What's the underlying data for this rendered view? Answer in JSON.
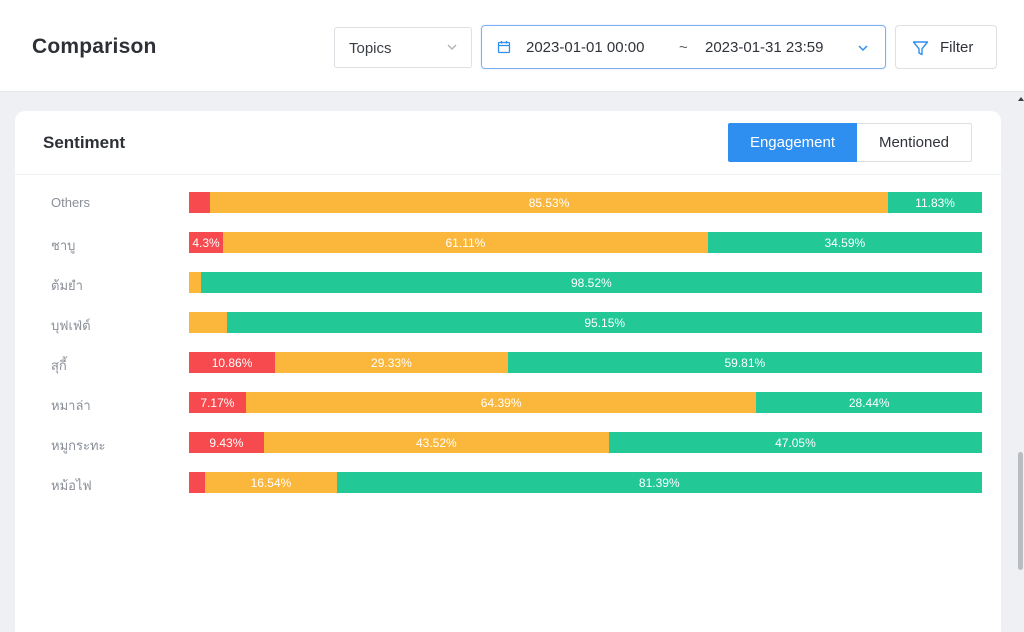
{
  "header": {
    "title": "Comparison",
    "topics_label": "Topics",
    "date_start": "2023-01-01 00:00",
    "date_sep": "~",
    "date_end": "2023-01-31 23:59",
    "filter_label": "Filter"
  },
  "card": {
    "title": "Sentiment",
    "toggle": {
      "active": "Engagement",
      "inactive": "Mentioned"
    }
  },
  "colors": {
    "negative": "#f64a4f",
    "neutral": "#fbb73c",
    "positive": "#22c896",
    "accent": "#2e8ff0"
  },
  "chart_data": {
    "type": "bar",
    "orientation": "horizontal",
    "stacked": "percent",
    "series_order": [
      "negative",
      "neutral",
      "positive"
    ],
    "rows": [
      {
        "label": "Others",
        "negative": 2.64,
        "neutral": 85.53,
        "positive": 11.83,
        "text": [
          "",
          "85.53%",
          "11.83%"
        ]
      },
      {
        "label": "ชาบู",
        "negative": 4.3,
        "neutral": 61.11,
        "positive": 34.59,
        "text": [
          "4.3%",
          "61.11%",
          "34.59%"
        ]
      },
      {
        "label": "ต้มยำ",
        "negative": 0,
        "neutral": 1.48,
        "positive": 98.52,
        "text": [
          "",
          "",
          "98.52%"
        ]
      },
      {
        "label": "บุฟเฟ่ต์",
        "negative": 0,
        "neutral": 4.85,
        "positive": 95.15,
        "text": [
          "",
          "",
          "95.15%"
        ]
      },
      {
        "label": "สุกี้",
        "negative": 10.86,
        "neutral": 29.33,
        "positive": 59.81,
        "text": [
          "10.86%",
          "29.33%",
          "59.81%"
        ]
      },
      {
        "label": "หมาล่า",
        "negative": 7.17,
        "neutral": 64.39,
        "positive": 28.44,
        "text": [
          "7.17%",
          "64.39%",
          "28.44%"
        ]
      },
      {
        "label": "หมูกระทะ",
        "negative": 9.43,
        "neutral": 43.52,
        "positive": 47.05,
        "text": [
          "9.43%",
          "43.52%",
          "47.05%"
        ]
      },
      {
        "label": "หม้อไฟ",
        "negative": 2.07,
        "neutral": 16.54,
        "positive": 81.39,
        "text": [
          "",
          "16.54%",
          "81.39%"
        ]
      }
    ]
  }
}
